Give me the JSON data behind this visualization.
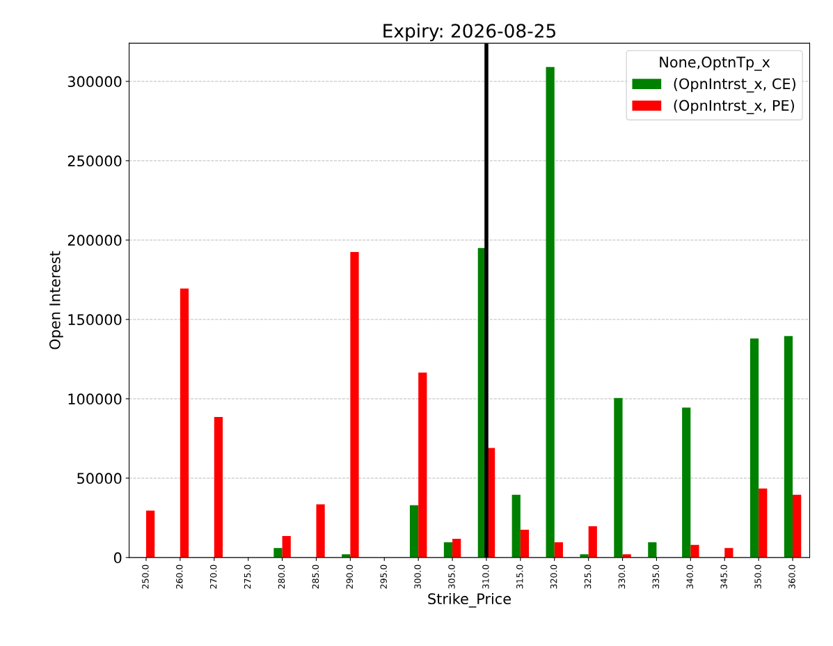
{
  "chart_data": {
    "type": "bar",
    "title": "Expiry: 2026-08-25",
    "xlabel": "Strike_Price",
    "ylabel": "Open Interest",
    "legend_title": "None,OptnTp_x",
    "categories": [
      "250.0",
      "260.0",
      "270.0",
      "275.0",
      "280.0",
      "285.0",
      "290.0",
      "295.0",
      "300.0",
      "305.0",
      "310.0",
      "315.0",
      "320.0",
      "325.0",
      "330.0",
      "335.0",
      "340.0",
      "345.0",
      "350.0",
      "360.0"
    ],
    "series": [
      {
        "name": "(OpnIntrst_x, CE)",
        "color": "#008000",
        "values": [
          0,
          0,
          0,
          0,
          6000,
          0,
          2000,
          0,
          33000,
          9600,
          195000,
          39500,
          309000,
          2000,
          100500,
          9600,
          94500,
          0,
          138000,
          139500
        ]
      },
      {
        "name": "(OpnIntrst_x, PE)",
        "color": "#ff0000",
        "values": [
          29500,
          169500,
          88500,
          0,
          13500,
          33500,
          192500,
          0,
          116500,
          11800,
          69000,
          17500,
          9600,
          19700,
          2000,
          0,
          7900,
          6000,
          43500,
          39500
        ]
      }
    ],
    "ylim": [
      0,
      324000
    ],
    "yticks": [
      0,
      50000,
      100000,
      150000,
      200000,
      250000,
      300000
    ],
    "ref_lines": [
      {
        "axis": "x",
        "value": "310.0",
        "color": "#000000"
      }
    ],
    "grid": "y",
    "legend": "top right"
  }
}
